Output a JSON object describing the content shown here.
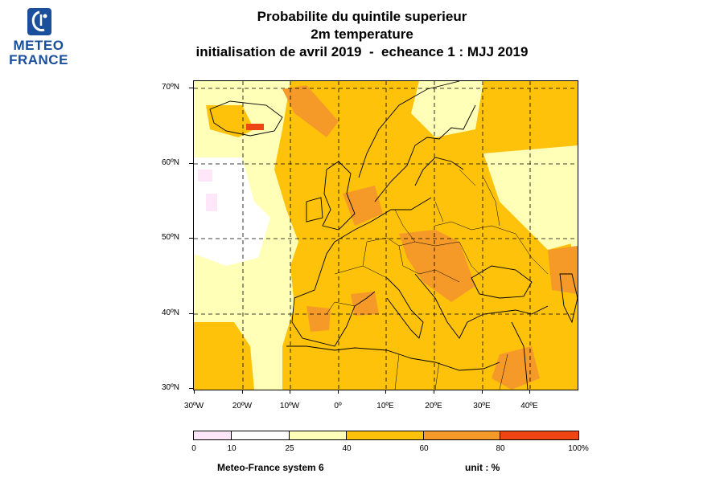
{
  "logo": {
    "line1": "METEO",
    "line2": "FRANCE",
    "icon": "meteo-france-logo-icon",
    "color": "#1a4f9c"
  },
  "title": {
    "line1": "Probabilite du quintile superieur",
    "line2": "2m temperature",
    "line3": "initialisation de avril 2019  -  echeance 1 : MJJ 2019"
  },
  "map": {
    "lat_labels": [
      "70ºN",
      "60ºN",
      "50ºN",
      "40ºN",
      "30ºN"
    ],
    "lon_labels": [
      "30ºW",
      "20ºW",
      "10ºW",
      "0º",
      "10ºE",
      "20ºE",
      "30ºE",
      "40ºE"
    ],
    "lat_range": [
      30,
      71
    ],
    "lon_range": [
      -30,
      50
    ],
    "grid": true
  },
  "colorbar": {
    "labels": [
      "0",
      "10",
      "25",
      "40",
      "60",
      "80",
      "100%"
    ],
    "colors": [
      "#ffe6f8",
      "#ffffff",
      "#ffffb8",
      "#ffc20a",
      "#f59a28",
      "#ee4512"
    ]
  },
  "footer": {
    "model": "Meteo-France system 6",
    "unit": "unit : %"
  }
}
